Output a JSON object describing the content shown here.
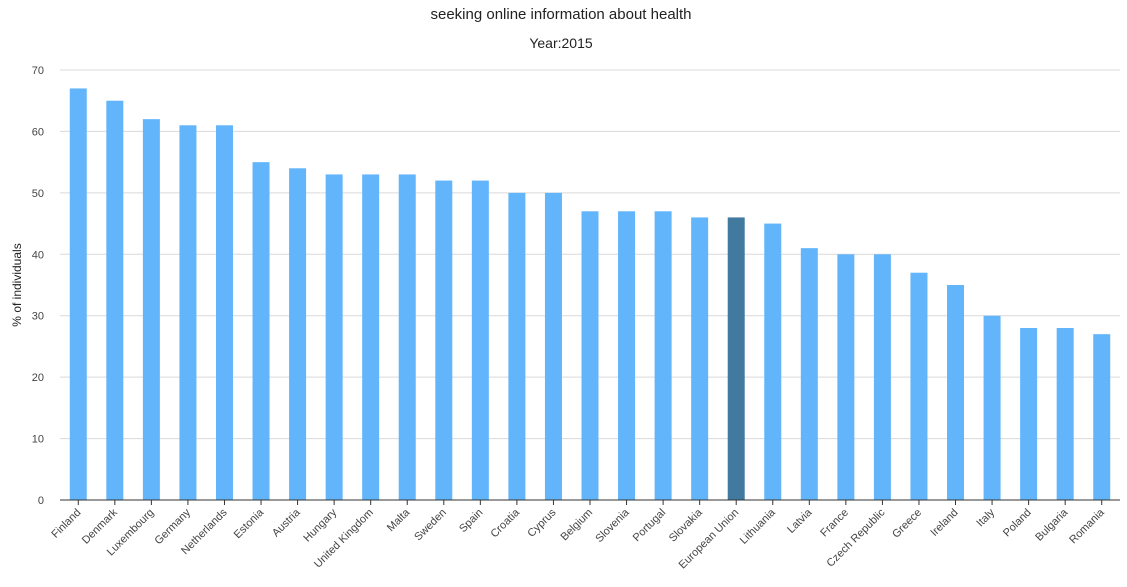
{
  "chart_data": {
    "type": "bar",
    "title": "seeking online information about health",
    "subtitle": "Year:2015",
    "xlabel": "",
    "ylabel": "% of individuals",
    "ylim": [
      0,
      70
    ],
    "yticks": [
      0,
      10,
      20,
      30,
      40,
      50,
      60,
      70
    ],
    "grid": true,
    "categories": [
      "Finland",
      "Denmark",
      "Luxembourg",
      "Germany",
      "Netherlands",
      "Estonia",
      "Austria",
      "Hungary",
      "United Kingdom",
      "Malta",
      "Sweden",
      "Spain",
      "Croatia",
      "Cyprus",
      "Belgium",
      "Slovenia",
      "Portugal",
      "Slovakia",
      "European Union",
      "Lithuania",
      "Latvia",
      "France",
      "Czech Republic",
      "Greece",
      "Ireland",
      "Italy",
      "Poland",
      "Bulgaria",
      "Romania"
    ],
    "values": [
      67,
      65,
      62,
      61,
      61,
      55,
      54,
      53,
      53,
      53,
      52,
      52,
      50,
      50,
      47,
      47,
      47,
      46,
      46,
      45,
      41,
      40,
      40,
      37,
      35,
      30,
      28,
      28,
      27
    ],
    "highlight_category": "European Union",
    "colors": {
      "bar": "#63b5fb",
      "highlight": "#41799f",
      "grid": "#d9d9d9",
      "axis": "#333333"
    }
  }
}
